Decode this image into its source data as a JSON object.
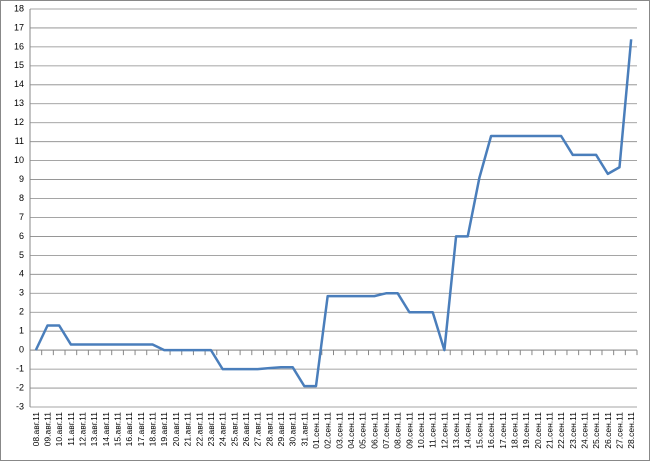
{
  "chart_data": {
    "type": "line",
    "categories": [
      "08.авг.11",
      "09.авг.11",
      "10.авг.11",
      "11.авг.11",
      "12.авг.11",
      "13.авг.11",
      "14.авг.11",
      "15.авг.11",
      "16.авг.11",
      "17.авг.11",
      "18.авг.11",
      "19.авг.11",
      "20.авг.11",
      "21.авг.11",
      "22.авг.11",
      "23.авг.11",
      "24.авг.11",
      "25.авг.11",
      "26.авг.11",
      "27.авг.11",
      "28.авг.11",
      "29.авг.11",
      "30.авг.11",
      "31.авг.11",
      "01.сен.11",
      "02.сен.11",
      "03.сен.11",
      "04.сен.11",
      "05.сен.11",
      "06.сен.11",
      "07.сен.11",
      "08.сен.11",
      "09.сен.11",
      "10.сен.11",
      "11.сен.11",
      "12.сен.11",
      "13.сен.11",
      "14.сен.11",
      "15.сен.11",
      "16.сен.11",
      "17.сен.11",
      "18.сен.11",
      "19.сен.11",
      "20.сен.11",
      "21.сен.11",
      "22.сен.11",
      "23.сен.11",
      "24.сен.11",
      "25.сен.11",
      "26.сен.11",
      "27.сен.11",
      "28.сен.11"
    ],
    "values": [
      0,
      1.3,
      1.3,
      0.3,
      0.3,
      0.3,
      0.3,
      0.3,
      0.3,
      0.3,
      0.3,
      0,
      0,
      0,
      0,
      0,
      -1,
      -1,
      -1,
      -1,
      -0.95,
      -0.9,
      -0.9,
      -1.9,
      -1.9,
      2.85,
      2.85,
      2.85,
      2.85,
      2.85,
      3,
      3,
      2,
      2,
      2,
      0,
      6,
      6,
      9.1,
      11.3,
      11.3,
      11.3,
      11.3,
      11.3,
      11.3,
      11.3,
      10.3,
      10.3,
      10.3,
      9.3,
      9.65,
      16.4
    ],
    "color": "#4a7ebb",
    "ylim": [
      -3,
      18
    ],
    "yticks": [
      -3,
      -2,
      -1,
      0,
      1,
      2,
      3,
      4,
      5,
      6,
      7,
      8,
      9,
      10,
      11,
      12,
      13,
      14,
      15,
      16,
      17,
      18
    ],
    "grid": true
  }
}
